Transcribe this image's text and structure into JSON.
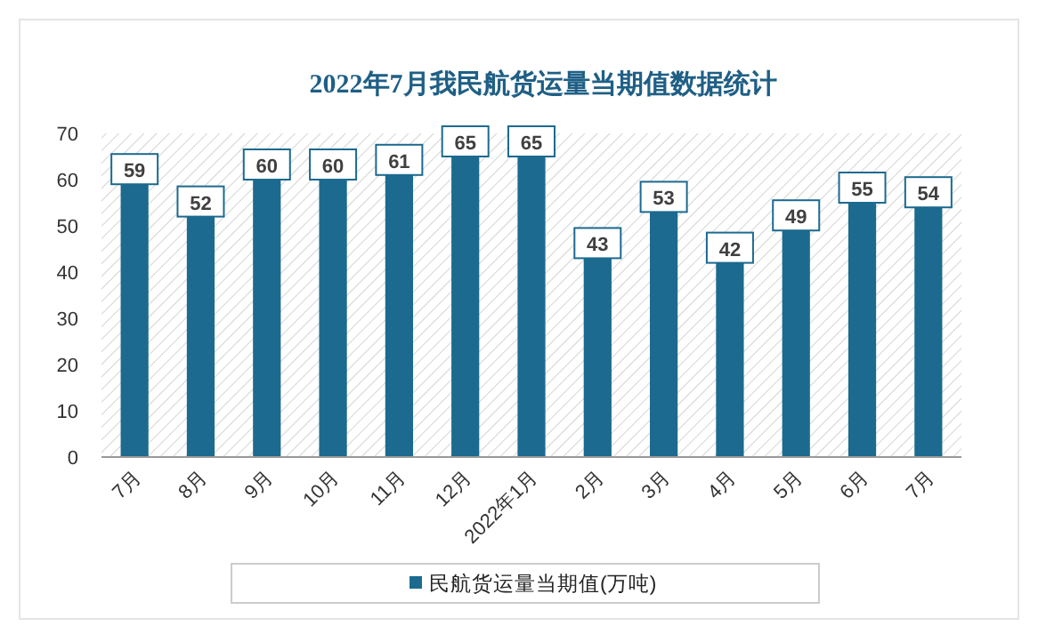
{
  "chart_data": {
    "type": "bar",
    "title": "2022年7月我民航货运量当期值数据统计",
    "categories": [
      "7月",
      "8月",
      "9月",
      "10月",
      "11月",
      "12月",
      "2022年1月",
      "2月",
      "3月",
      "4月",
      "5月",
      "6月",
      "7月"
    ],
    "series": [
      {
        "name": "民航货运量当期值(万吨)",
        "color": "#1c6a8f",
        "values": [
          59,
          52,
          60,
          60,
          61,
          65,
          65,
          43,
          53,
          42,
          49,
          55,
          54
        ]
      }
    ],
    "ylim": [
      0,
      70
    ],
    "yticks": [
      0,
      10,
      20,
      30,
      40,
      50,
      60,
      70
    ],
    "data_labels": true,
    "legend": "bottom",
    "grid": false
  }
}
